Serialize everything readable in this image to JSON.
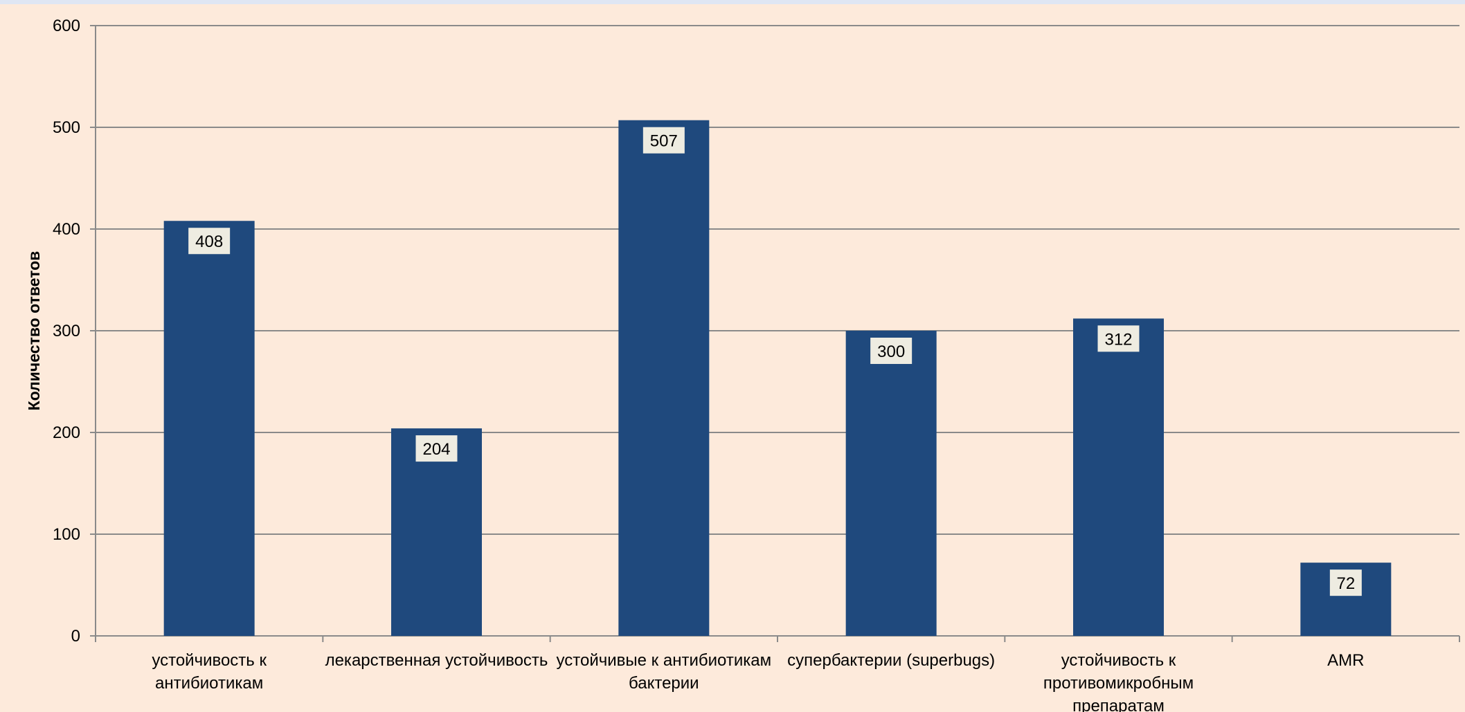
{
  "chart_data": {
    "type": "bar",
    "categories": [
      [
        "устойчивость к",
        "антибиотикам"
      ],
      [
        "лекарственная устойчивость"
      ],
      [
        "устойчивые к антибиотикам",
        "бактерии"
      ],
      [
        "супербактерии (superbugs)"
      ],
      [
        "устойчивость к",
        "противомикробным",
        "препаратам"
      ],
      [
        "AMR"
      ]
    ],
    "values": [
      408,
      204,
      507,
      300,
      312,
      72
    ],
    "data_labels": [
      "408",
      "204",
      "507",
      "300",
      "312",
      "72"
    ],
    "ylabel": "Количество ответов",
    "ylim": [
      0,
      600
    ],
    "yticks": [
      0,
      100,
      200,
      300,
      400,
      500,
      600
    ],
    "grid": true,
    "legend": "none"
  },
  "colors": {
    "background": "#fdeadb",
    "top_band": "#dfe6f3",
    "bar": "#1f497d",
    "grid": "#8a8a8a",
    "data_label_bg": "#eeece1"
  }
}
